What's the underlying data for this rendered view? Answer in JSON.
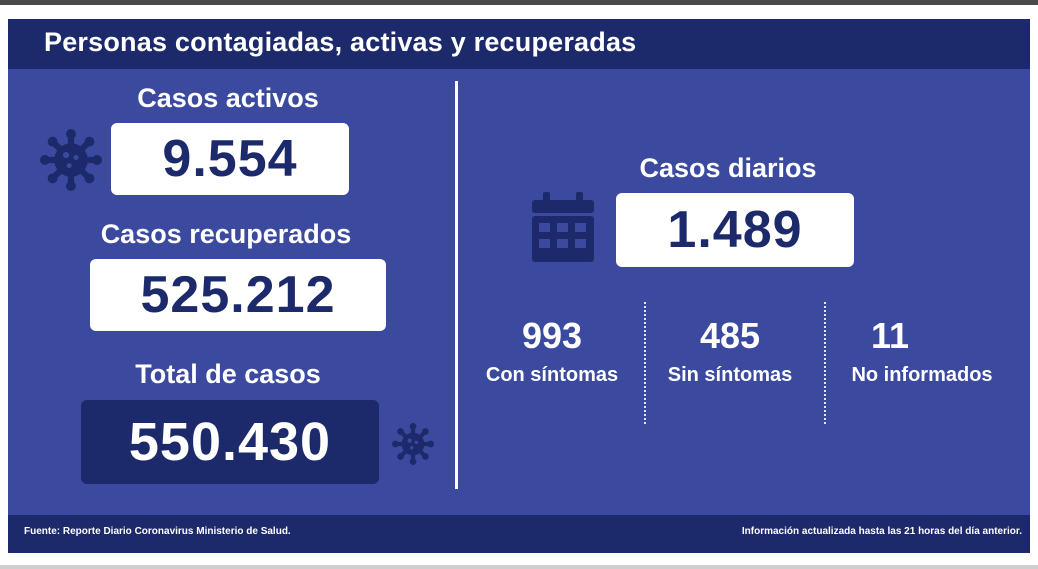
{
  "header": {
    "title": "Personas contagiadas, activas y recuperadas"
  },
  "left": {
    "active": {
      "label": "Casos activos",
      "value": "9.554"
    },
    "recovered": {
      "label": "Casos recuperados",
      "value": "525.212"
    },
    "total": {
      "label": "Total de casos",
      "value": "550.430"
    }
  },
  "right": {
    "daily": {
      "label": "Casos diarios",
      "value": "1.489"
    },
    "breakdown": [
      {
        "value": "993",
        "label": "Con síntomas"
      },
      {
        "value": "485",
        "label": "Sin síntomas"
      },
      {
        "value": "11",
        "label": "No informados"
      }
    ]
  },
  "footer": {
    "source": "Fuente: Reporte Diario Coronavirus Ministerio de Salud.",
    "updated": "Información actualizada hasta las 21 horas  del día anterior."
  },
  "colors": {
    "panel": "#3b4a9f",
    "navy": "#1c2a6b",
    "icon": "#1c2a6b"
  },
  "icons": [
    "virus-icon",
    "calendar-icon"
  ]
}
